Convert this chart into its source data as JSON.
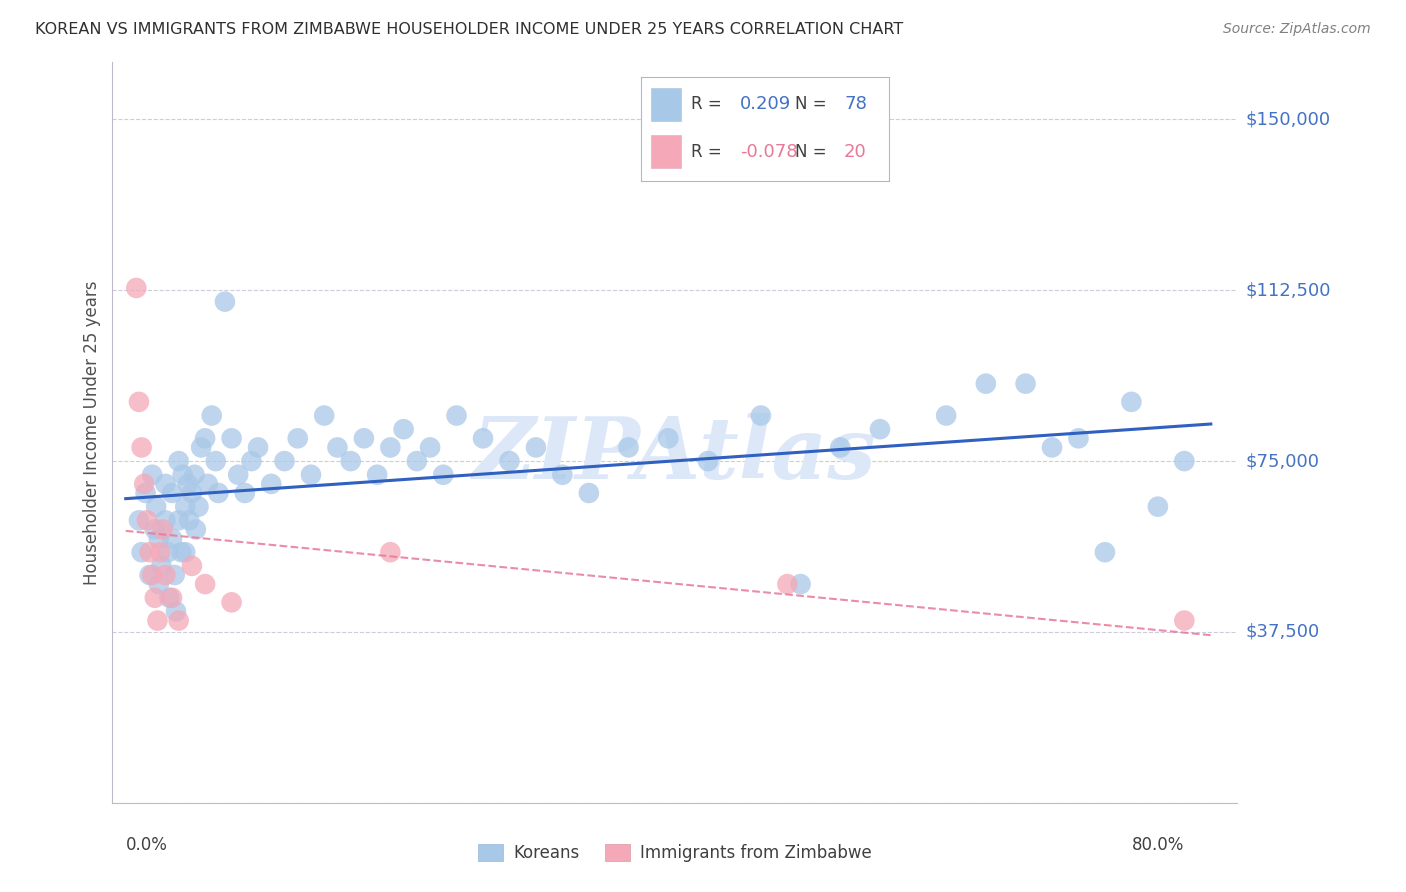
{
  "title": "KOREAN VS IMMIGRANTS FROM ZIMBABWE HOUSEHOLDER INCOME UNDER 25 YEARS CORRELATION CHART",
  "source": "Source: ZipAtlas.com",
  "ylabel": "Householder Income Under 25 years",
  "xmin": 0.0,
  "xmax": 0.8,
  "ymin": 0,
  "ymax": 162500,
  "yticks": [
    0,
    37500,
    75000,
    112500,
    150000
  ],
  "ytick_labels": [
    "",
    "$37,500",
    "$75,000",
    "$112,500",
    "$150,000"
  ],
  "legend_korean_R": "0.209",
  "legend_korean_N": "78",
  "legend_zimb_R": "-0.078",
  "legend_zimb_N": "20",
  "korean_color": "#a8c8e8",
  "korean_line_color": "#3060c0",
  "zimb_color": "#f4a8b8",
  "zimb_line_color": "#e87898",
  "watermark": "ZIPAtlas",
  "watermark_color": "#dce8f8",
  "grid_color": "#ccccdd",
  "title_color": "#303030",
  "ytick_color": "#4472c4",
  "legend_text_color": "#404040",
  "legend_value_color_k": "#4472c4",
  "legend_value_color_z": "#e87898",
  "background_color": "#ffffff",
  "korean_x": [
    0.01,
    0.012,
    0.015,
    0.018,
    0.02,
    0.022,
    0.023,
    0.025,
    0.025,
    0.027,
    0.03,
    0.03,
    0.032,
    0.033,
    0.035,
    0.035,
    0.037,
    0.038,
    0.04,
    0.04,
    0.042,
    0.043,
    0.045,
    0.045,
    0.047,
    0.048,
    0.05,
    0.052,
    0.053,
    0.055,
    0.057,
    0.06,
    0.062,
    0.065,
    0.068,
    0.07,
    0.075,
    0.08,
    0.085,
    0.09,
    0.095,
    0.1,
    0.11,
    0.12,
    0.13,
    0.14,
    0.15,
    0.16,
    0.17,
    0.18,
    0.19,
    0.2,
    0.21,
    0.22,
    0.23,
    0.24,
    0.25,
    0.27,
    0.29,
    0.31,
    0.33,
    0.35,
    0.38,
    0.41,
    0.44,
    0.48,
    0.51,
    0.54,
    0.57,
    0.62,
    0.65,
    0.68,
    0.7,
    0.72,
    0.74,
    0.76,
    0.78,
    0.8
  ],
  "korean_y": [
    62000,
    55000,
    68000,
    50000,
    72000,
    60000,
    65000,
    58000,
    48000,
    52000,
    70000,
    62000,
    55000,
    45000,
    68000,
    58000,
    50000,
    42000,
    75000,
    62000,
    55000,
    72000,
    65000,
    55000,
    70000,
    62000,
    68000,
    72000,
    60000,
    65000,
    78000,
    80000,
    70000,
    85000,
    75000,
    68000,
    110000,
    80000,
    72000,
    68000,
    75000,
    78000,
    70000,
    75000,
    80000,
    72000,
    85000,
    78000,
    75000,
    80000,
    72000,
    78000,
    82000,
    75000,
    78000,
    72000,
    85000,
    80000,
    75000,
    78000,
    72000,
    68000,
    78000,
    80000,
    75000,
    85000,
    48000,
    78000,
    82000,
    85000,
    92000,
    92000,
    78000,
    80000,
    55000,
    88000,
    65000,
    75000
  ],
  "zimb_x": [
    0.008,
    0.01,
    0.012,
    0.014,
    0.016,
    0.018,
    0.02,
    0.022,
    0.024,
    0.026,
    0.028,
    0.03,
    0.035,
    0.04,
    0.05,
    0.06,
    0.08,
    0.2,
    0.5,
    0.8
  ],
  "zimb_y": [
    113000,
    88000,
    78000,
    70000,
    62000,
    55000,
    50000,
    45000,
    40000,
    55000,
    60000,
    50000,
    45000,
    40000,
    52000,
    48000,
    44000,
    55000,
    48000,
    40000
  ]
}
